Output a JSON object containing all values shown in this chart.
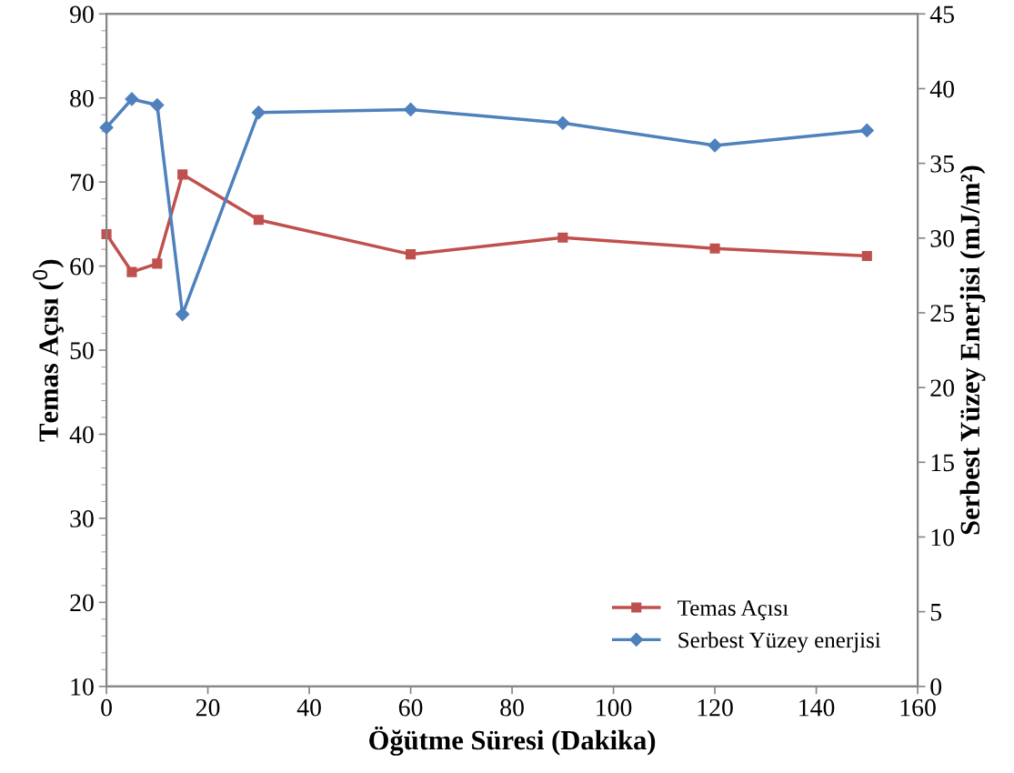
{
  "chart_data": {
    "type": "line",
    "xlabel": "Öğütme Süresi (Dakika)",
    "ylabel": "Temas Açısı ($^{0}$)",
    "y2label": "Serbest Yüzey Enerjisi (mJ/m²)",
    "x": [
      0,
      5,
      10,
      15,
      30,
      60,
      90,
      120,
      150
    ],
    "series": [
      {
        "name": "Temas Açısı",
        "color": "#c0504d",
        "marker": "square",
        "values": [
          63.8,
          59.3,
          60.3,
          70.9,
          65.5,
          61.4,
          63.4,
          62.1,
          61.2
        ]
      },
      {
        "name": "Serbest Yüzey enerjisi",
        "color": "#4f81bd",
        "marker": "diamond",
        "axis": "y2",
        "values": [
          37.4,
          39.3,
          38.9,
          24.9,
          38.4,
          38.6,
          37.7,
          36.2,
          37.2
        ]
      }
    ],
    "xlim": [
      0,
      160
    ],
    "xticks": [
      0,
      20,
      40,
      60,
      80,
      100,
      120,
      140,
      160
    ],
    "ylim": [
      10,
      90
    ],
    "yticks": [
      10,
      20,
      30,
      40,
      50,
      60,
      70,
      80,
      90
    ],
    "y2lim": [
      0,
      45
    ],
    "y2ticks": [
      0,
      5,
      10,
      15,
      20,
      25,
      30,
      35,
      40,
      45
    ],
    "grid": false,
    "legend": "bottom right",
    "line_style": "solid"
  }
}
